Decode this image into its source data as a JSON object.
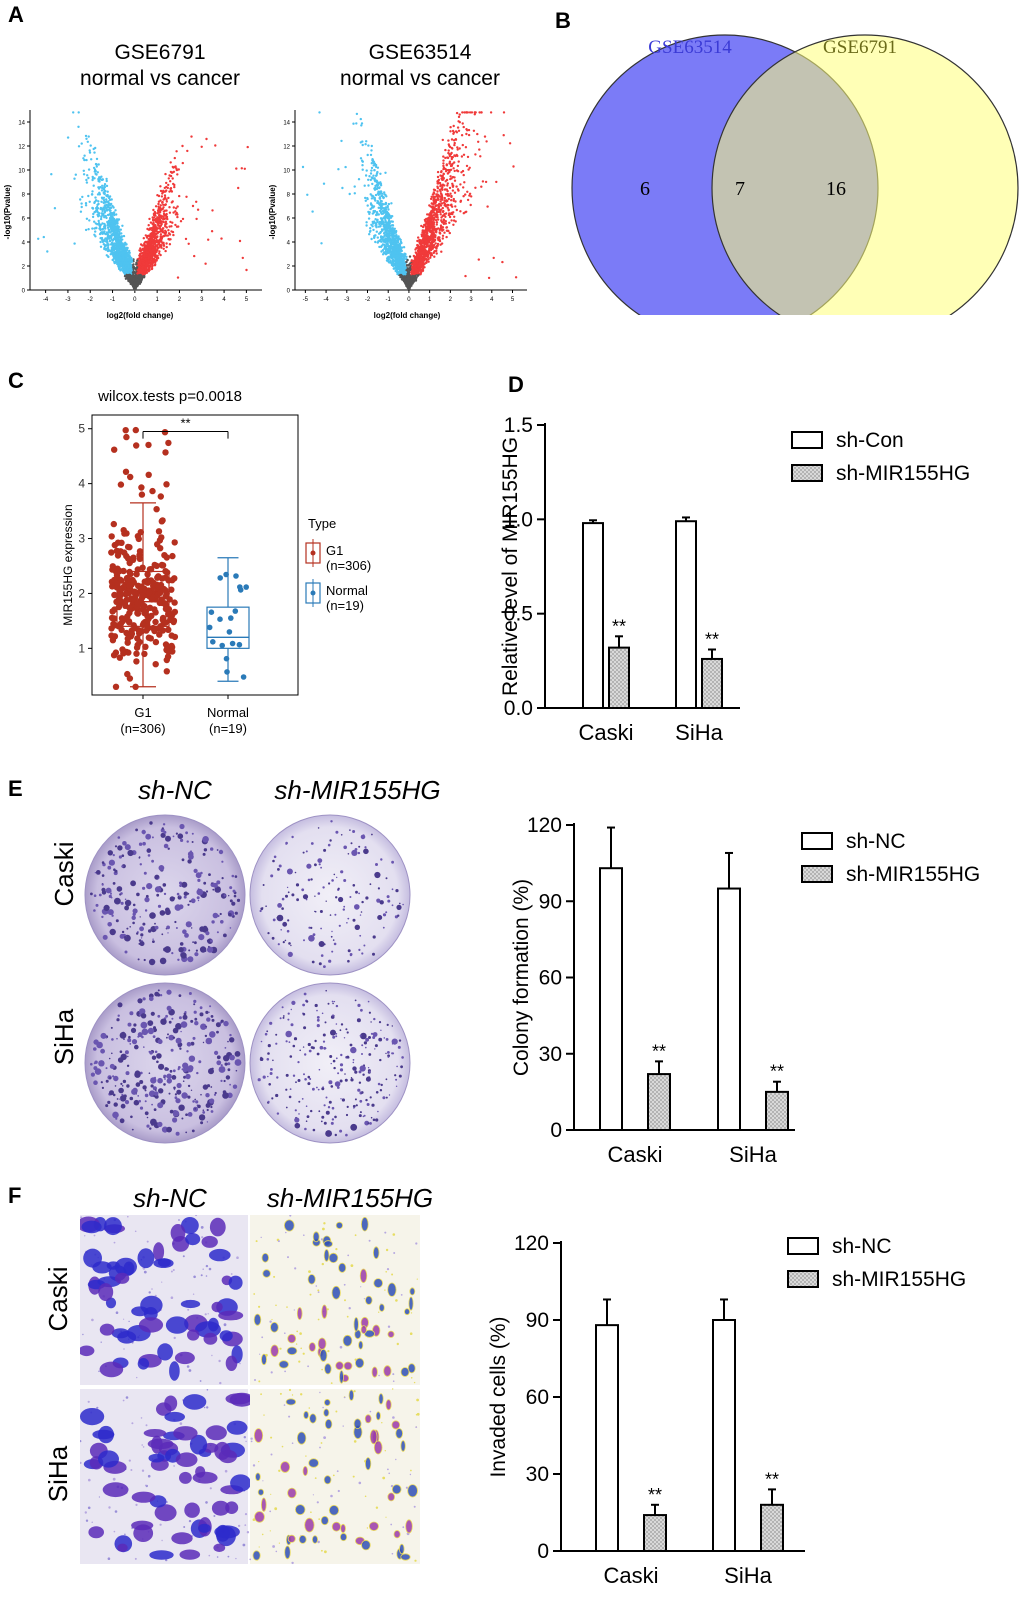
{
  "panels": {
    "a": {
      "label": "A"
    },
    "b": {
      "label": "B"
    },
    "c": {
      "label": "C"
    },
    "d": {
      "label": "D"
    },
    "e": {
      "label": "E"
    },
    "f": {
      "label": "F"
    }
  },
  "volcano": [
    {
      "title_line1": "GSE6791",
      "title_line2": "normal vs cancer",
      "xlabel": "log2(fold change)",
      "ylabel": "-log10(Pvalue)",
      "xticks": [
        "-4",
        "-3",
        "-2",
        "-1",
        "0",
        "1",
        "2",
        "3",
        "4",
        "5"
      ],
      "yticks": [
        "0",
        "2",
        "4",
        "6",
        "8",
        "10",
        "12",
        "14"
      ]
    },
    {
      "title_line1": "GSE63514",
      "title_line2": "normal vs cancer",
      "xlabel": "log2(fold change)",
      "ylabel": "-log10(Pvalue)",
      "xticks": [
        "-5",
        "-4",
        "-3",
        "-2",
        "-1",
        "0",
        "1",
        "2",
        "3",
        "4",
        "5"
      ],
      "yticks": [
        "0",
        "2",
        "4",
        "6",
        "8",
        "10",
        "12",
        "14"
      ]
    }
  ],
  "colors": {
    "down": "#4fc3f0",
    "up": "#f03a3a",
    "ns": "#555555",
    "g1": "#b5301f",
    "normal": "#2a7ab8",
    "venn_left": "#7b7bf7",
    "venn_right": "#ffff7a",
    "venn_left_text": "#3b3bd6",
    "venn_right_text": "#6b6b1a"
  },
  "venn": {
    "left_name": "GSE63514",
    "right_name": "GSE6791",
    "left_only": "6",
    "overlap": "7",
    "right_only": "16"
  },
  "boxplot": {
    "title": "wilcox.tests p=0.0018",
    "ylabel": "MIR155HG expression",
    "sig": "**",
    "yticks": [
      "1",
      "2",
      "3",
      "4",
      "5"
    ],
    "groups": [
      {
        "name": "G1",
        "n": "(n=306)",
        "min": 0.3,
        "q1": 1.4,
        "median": 1.85,
        "q3": 2.4,
        "max": 3.65
      },
      {
        "name": "Normal",
        "n": "(n=19)",
        "min": 0.4,
        "q1": 1.0,
        "median": 1.2,
        "q3": 1.75,
        "max": 2.65
      }
    ],
    "legend_title": "Type",
    "legend": [
      {
        "name": "G1",
        "n": "(n=306)"
      },
      {
        "name": "Normal",
        "n": "(n=19)"
      }
    ]
  },
  "chart_data": [
    {
      "type": "bar",
      "panel": "D",
      "categories": [
        "Caski",
        "SiHa"
      ],
      "ylabel": "Relative level of MIR155HG",
      "ylim": [
        0,
        1.5
      ],
      "yticks": [
        "0.0",
        "0.5",
        "1.0",
        "1.5"
      ],
      "series": [
        {
          "name": "sh-Con",
          "values": [
            0.98,
            0.99
          ],
          "errors": [
            0.015,
            0.02
          ]
        },
        {
          "name": "sh-MIR155HG",
          "values": [
            0.32,
            0.26
          ],
          "errors": [
            0.06,
            0.05
          ]
        }
      ],
      "annotations": [
        "**",
        "**"
      ]
    },
    {
      "type": "bar",
      "panel": "E",
      "categories": [
        "Caski",
        "SiHa"
      ],
      "ylabel": "Colony formation (%)",
      "ylim": [
        0,
        120
      ],
      "yticks": [
        "0",
        "30",
        "60",
        "90",
        "120"
      ],
      "series": [
        {
          "name": "sh-NC",
          "values": [
            103,
            95
          ],
          "errors": [
            16,
            14
          ]
        },
        {
          "name": "sh-MIR155HG",
          "values": [
            22,
            15
          ],
          "errors": [
            5,
            4
          ]
        }
      ],
      "annotations": [
        "**",
        "**"
      ]
    },
    {
      "type": "bar",
      "panel": "F",
      "categories": [
        "Caski",
        "SiHa"
      ],
      "ylabel": "Invaded cells (%)",
      "ylim": [
        0,
        120
      ],
      "yticks": [
        "0",
        "30",
        "60",
        "90",
        "120"
      ],
      "series": [
        {
          "name": "sh-NC",
          "values": [
            88,
            90
          ],
          "errors": [
            10,
            8
          ]
        },
        {
          "name": "sh-MIR155HG",
          "values": [
            14,
            18
          ],
          "errors": [
            4,
            6
          ]
        }
      ],
      "annotations": [
        "**",
        "**"
      ]
    }
  ],
  "images": {
    "e": {
      "col1": "sh-NC",
      "col2": "sh-MIR155HG",
      "row1": "Caski",
      "row2": "SiHa"
    },
    "f": {
      "col1": "sh-NC",
      "col2": "sh-MIR155HG",
      "row1": "Caski",
      "row2": "SiHa"
    }
  }
}
